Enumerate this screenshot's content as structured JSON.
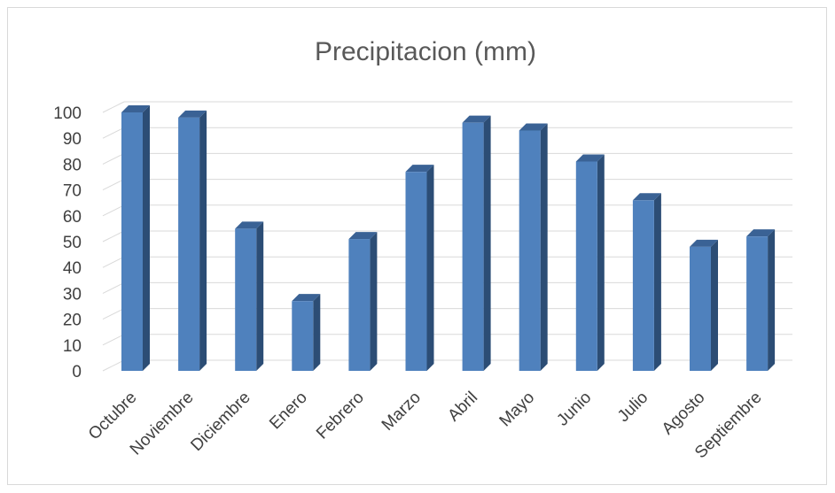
{
  "chart_data": {
    "type": "bar",
    "title": "Precipitacion (mm)",
    "xlabel": "",
    "ylabel": "",
    "categories": [
      "Octubre",
      "Noviembre",
      "Diciembre",
      "Enero",
      "Febrero",
      "Marzo",
      "Abril",
      "Mayo",
      "Junio",
      "Julio",
      "Agosto",
      "Septiembre"
    ],
    "values": [
      100,
      98,
      55,
      27,
      51,
      77,
      96,
      93,
      81,
      66,
      48,
      52
    ],
    "ylim": [
      0,
      100
    ],
    "yticks": [
      0,
      10,
      20,
      30,
      40,
      50,
      60,
      70,
      80,
      90,
      100
    ],
    "grid": true,
    "legend": "none",
    "style": "3d-column",
    "colors": {
      "front": "#4f81bd",
      "side": "#2c4d75",
      "top": "#3a6295",
      "grid": "#d9d9d9",
      "text": "#404040",
      "title": "#595959"
    }
  }
}
